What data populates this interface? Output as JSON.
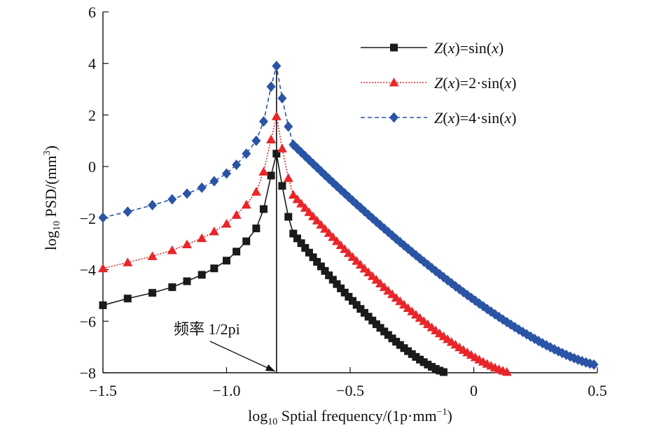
{
  "chart_data": {
    "type": "line",
    "title": "",
    "xlabel": {
      "prefix": "log",
      "sub": "10",
      "text": " Sptial frequency/(1p·mm",
      "sup": "−1",
      "suffix": ")"
    },
    "ylabel": {
      "prefix": "log",
      "sub": "10",
      "text": " PSD/(mm",
      "sup": "3",
      "suffix": ")"
    },
    "xlim": [
      -1.5,
      0.5
    ],
    "ylim": [
      -8,
      6
    ],
    "x_ticks": [
      -1.5,
      -1.0,
      -0.5,
      0,
      0.5
    ],
    "x_tick_labels": [
      "−1.5",
      "−1.0",
      "−0.5",
      "0",
      "0.5"
    ],
    "y_ticks": [
      -8,
      -6,
      -4,
      -2,
      0,
      2,
      4,
      6
    ],
    "y_tick_labels": [
      "−8",
      "−6",
      "−4",
      "−2",
      "0",
      "2",
      "4",
      "6"
    ],
    "grid": false,
    "legend_position": "top-right",
    "peak_x": -0.798,
    "annotation": {
      "text": "频率 1/2pi",
      "x": -0.798,
      "y": -8
    },
    "series": [
      {
        "name": "Z(x)=sin(x)",
        "name_parts": [
          "Z",
          "(",
          "x",
          ")=sin(",
          "x",
          ")"
        ],
        "name_italic": [
          true,
          false,
          true,
          false,
          true,
          false
        ],
        "color": "#1a1a1a",
        "line_style": "solid",
        "marker": "square",
        "peak_y": 0.5,
        "left_points": [
          [
            -1.5,
            -5.38
          ],
          [
            -1.4,
            -5.12
          ],
          [
            -1.3,
            -4.9
          ],
          [
            -1.22,
            -4.68
          ],
          [
            -1.16,
            -4.45
          ],
          [
            -1.1,
            -4.2
          ],
          [
            -1.05,
            -3.95
          ],
          [
            -1.0,
            -3.65
          ],
          [
            -0.96,
            -3.3
          ],
          [
            -0.92,
            -2.9
          ],
          [
            -0.88,
            -2.4
          ],
          [
            -0.85,
            -1.65
          ],
          [
            -0.82,
            -0.35
          ]
        ],
        "right_points": [
          [
            -0.775,
            -0.75
          ],
          [
            -0.75,
            -1.95
          ]
        ],
        "right_tail": {
          "x0": -0.73,
          "y0": -2.6,
          "x_end": -0.11,
          "y_end": -8.0,
          "curvature": 0.45,
          "step": 0.016
        }
      },
      {
        "name": "Z(x)=2·sin(x)",
        "name_parts": [
          "Z",
          "(",
          "x",
          ")=2·sin(",
          "x",
          ")"
        ],
        "name_italic": [
          true,
          false,
          true,
          false,
          true,
          false
        ],
        "color": "#e8262a",
        "line_style": "dotted",
        "marker": "triangle",
        "peak_y": 1.95,
        "left_points": [
          [
            -1.5,
            -3.95
          ],
          [
            -1.4,
            -3.72
          ],
          [
            -1.3,
            -3.48
          ],
          [
            -1.22,
            -3.25
          ],
          [
            -1.16,
            -3.02
          ],
          [
            -1.1,
            -2.78
          ],
          [
            -1.05,
            -2.52
          ],
          [
            -1.0,
            -2.22
          ],
          [
            -0.96,
            -1.88
          ],
          [
            -0.92,
            -1.48
          ],
          [
            -0.88,
            -0.98
          ],
          [
            -0.85,
            -0.2
          ],
          [
            -0.82,
            1.05
          ]
        ],
        "right_points": [
          [
            -0.775,
            0.7
          ],
          [
            -0.75,
            -0.45
          ]
        ],
        "right_tail": {
          "x0": -0.73,
          "y0": -1.1,
          "x_end": 0.15,
          "y_end": -8.0,
          "curvature": 0.45,
          "step": 0.016
        }
      },
      {
        "name": "Z(x)=4·sin(x)",
        "name_parts": [
          "Z",
          "(",
          "x",
          ")=4·sin(",
          "x",
          ")"
        ],
        "name_italic": [
          true,
          false,
          true,
          false,
          true,
          false
        ],
        "color": "#2a54a5",
        "line_style": "dashed",
        "marker": "diamond",
        "peak_y": 3.9,
        "left_points": [
          [
            -1.5,
            -1.98
          ],
          [
            -1.4,
            -1.75
          ],
          [
            -1.3,
            -1.5
          ],
          [
            -1.22,
            -1.27
          ],
          [
            -1.16,
            -1.05
          ],
          [
            -1.1,
            -0.82
          ],
          [
            -1.05,
            -0.57
          ],
          [
            -1.0,
            -0.27
          ],
          [
            -0.96,
            0.07
          ],
          [
            -0.92,
            0.5
          ],
          [
            -0.88,
            1.0
          ],
          [
            -0.85,
            1.75
          ],
          [
            -0.82,
            3.1
          ]
        ],
        "right_points": [
          [
            -0.775,
            2.65
          ],
          [
            -0.75,
            1.55
          ]
        ],
        "right_tail": {
          "x0": -0.73,
          "y0": 0.85,
          "x_end": 0.5,
          "y_end": -7.7,
          "curvature": 0.45,
          "step": 0.016
        }
      }
    ]
  }
}
